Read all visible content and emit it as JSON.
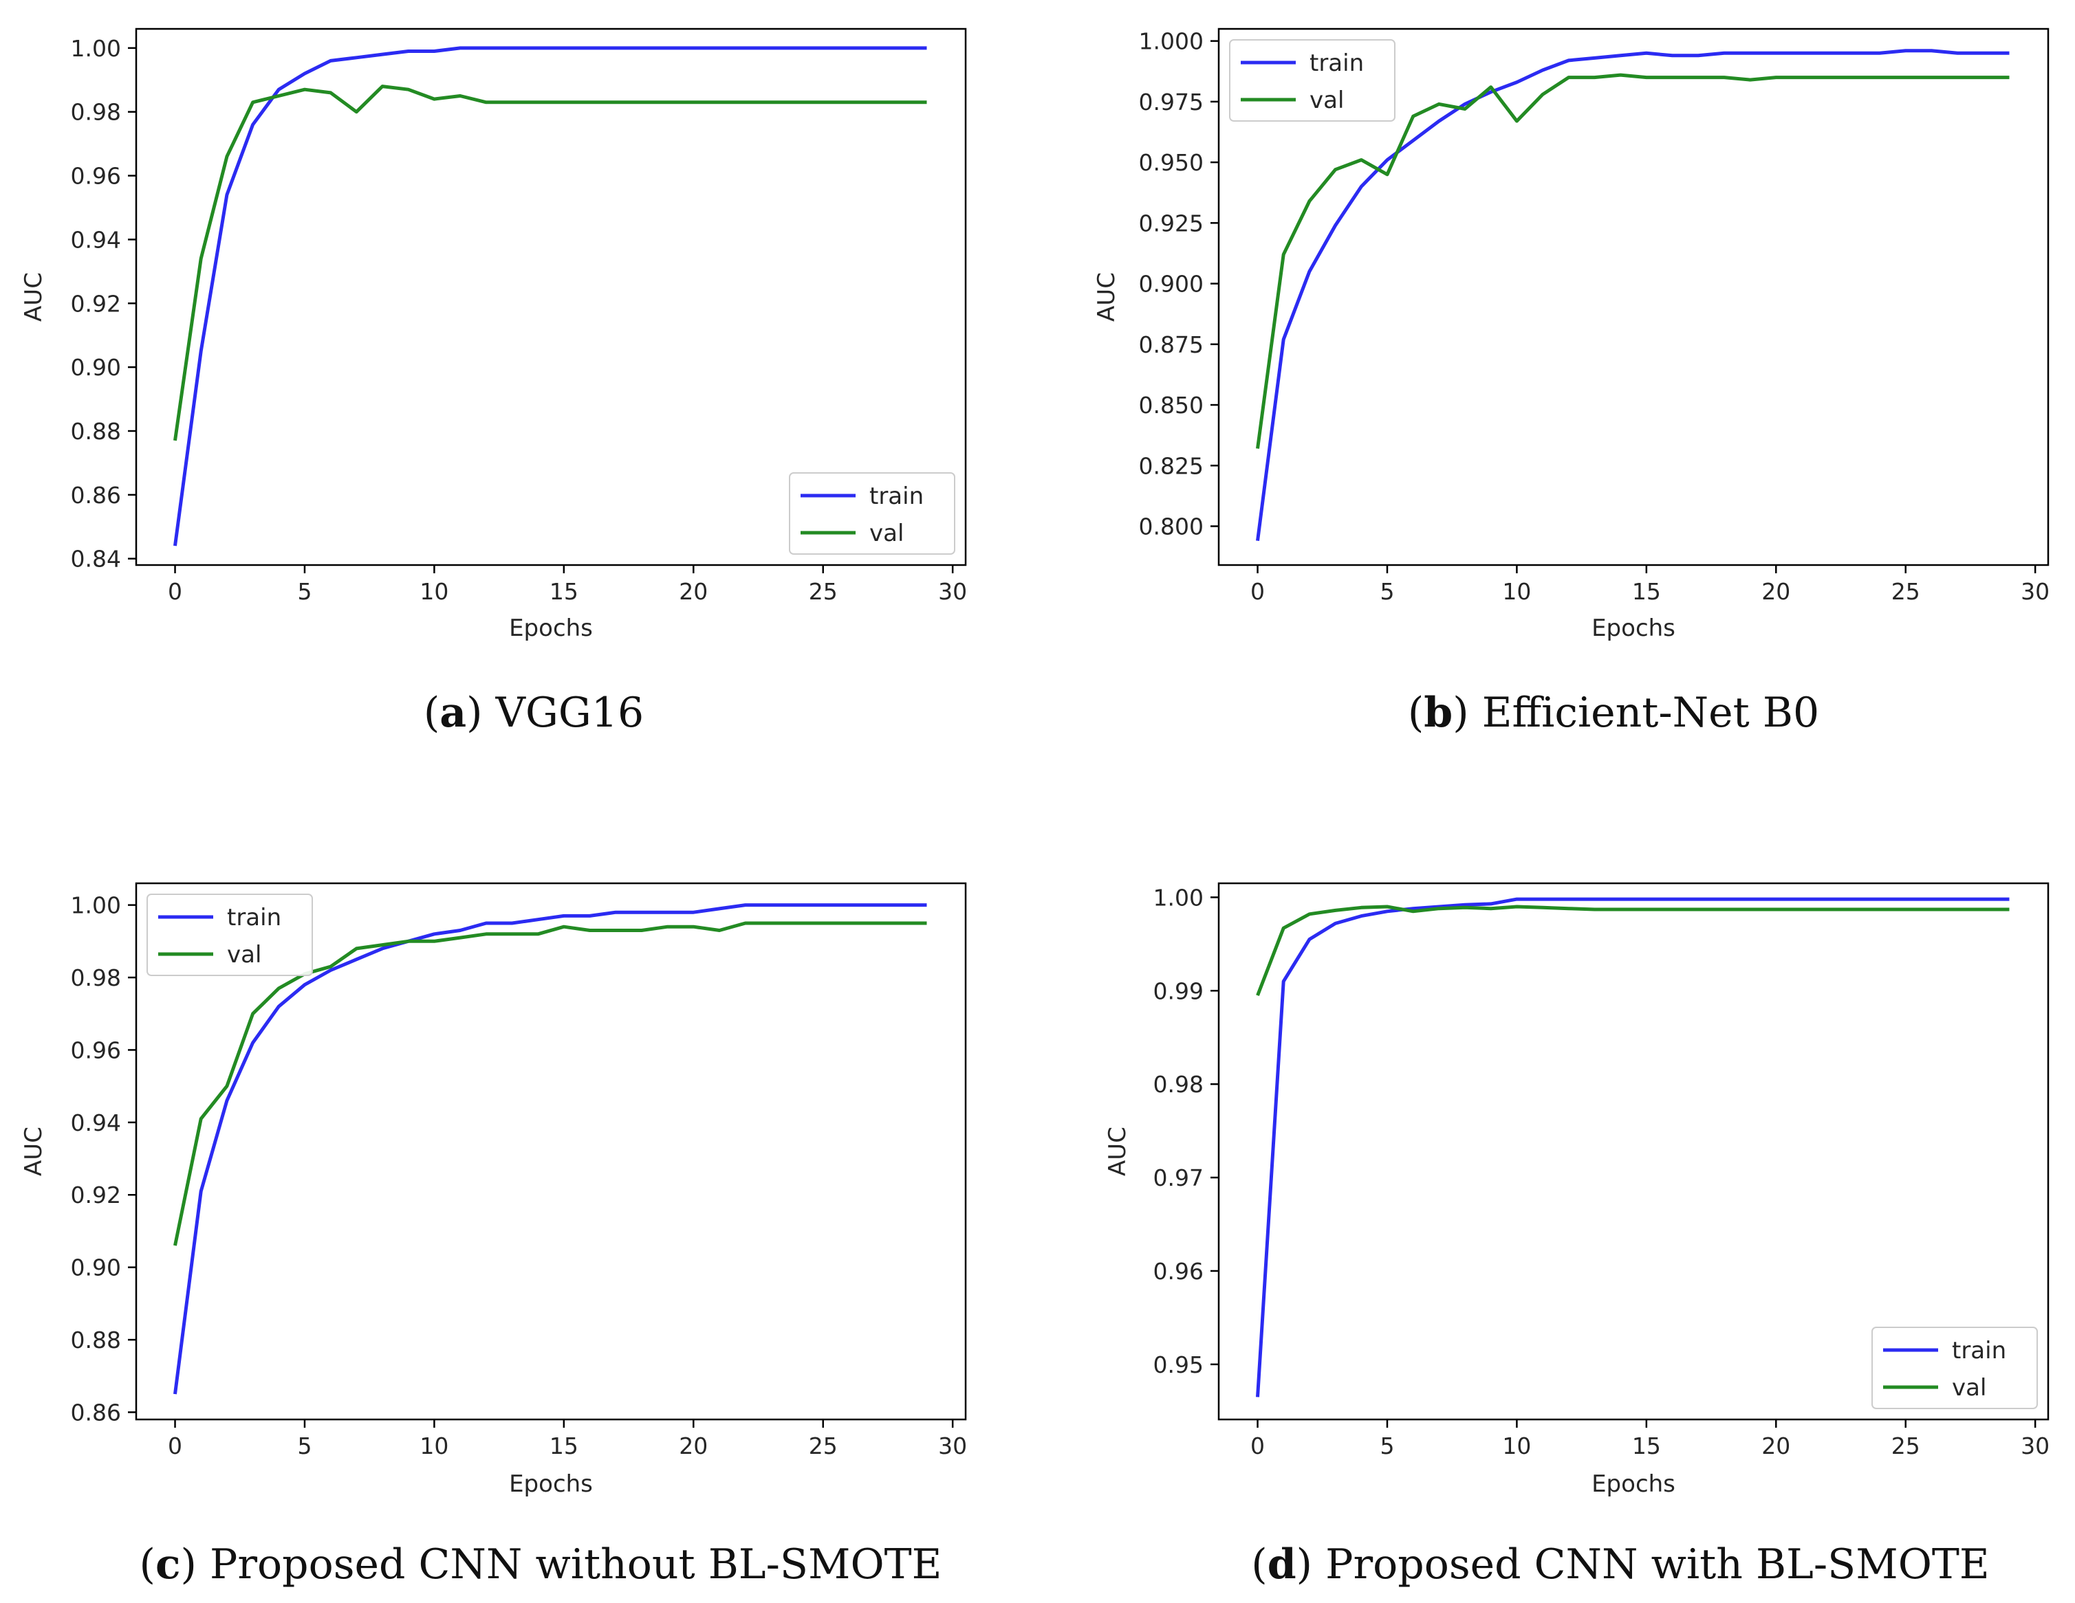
{
  "x_label": "Epochs",
  "y_label": "AUC",
  "series_colors": {
    "train": "#2b2bf2",
    "val": "#238b23"
  },
  "chart_data": [
    {
      "type": "line",
      "caption_letter": "a",
      "caption_text": "VGG16",
      "xlabel": "Epochs",
      "ylabel": "AUC",
      "xlim": [
        -1.5,
        30.5
      ],
      "ylim": [
        0.838,
        1.006
      ],
      "x_ticks": [
        0,
        5,
        10,
        15,
        20,
        25,
        30
      ],
      "y_ticks": [
        0.84,
        0.86,
        0.88,
        0.9,
        0.92,
        0.94,
        0.96,
        0.98,
        1.0
      ],
      "y_tick_labels": [
        "0.84",
        "0.86",
        "0.88",
        "0.90",
        "0.92",
        "0.94",
        "0.96",
        "0.98",
        "1.00"
      ],
      "legend_position": "bottom-right",
      "series": [
        {
          "name": "train",
          "values": [
            0.844,
            0.905,
            0.954,
            0.976,
            0.987,
            0.992,
            0.996,
            0.997,
            0.998,
            0.999,
            0.999,
            1.0,
            1.0,
            1.0,
            1.0,
            1.0,
            1.0,
            1.0,
            1.0,
            1.0,
            1.0,
            1.0,
            1.0,
            1.0,
            1.0,
            1.0,
            1.0,
            1.0,
            1.0,
            1.0
          ]
        },
        {
          "name": "val",
          "values": [
            0.877,
            0.934,
            0.966,
            0.983,
            0.985,
            0.987,
            0.986,
            0.98,
            0.988,
            0.987,
            0.984,
            0.985,
            0.983,
            0.983,
            0.983,
            0.983,
            0.983,
            0.983,
            0.983,
            0.983,
            0.983,
            0.983,
            0.983,
            0.983,
            0.983,
            0.983,
            0.983,
            0.983,
            0.983,
            0.983
          ]
        }
      ]
    },
    {
      "type": "line",
      "caption_letter": "b",
      "caption_text": "Efficient-Net B0",
      "xlabel": "Epochs",
      "ylabel": "AUC",
      "xlim": [
        -1.5,
        30.5
      ],
      "ylim": [
        0.784,
        1.005
      ],
      "x_ticks": [
        0,
        5,
        10,
        15,
        20,
        25,
        30
      ],
      "y_ticks": [
        0.8,
        0.825,
        0.85,
        0.875,
        0.9,
        0.925,
        0.95,
        0.975,
        1.0
      ],
      "y_tick_labels": [
        "0.800",
        "0.825",
        "0.850",
        "0.875",
        "0.900",
        "0.925",
        "0.950",
        "0.975",
        "1.000"
      ],
      "legend_position": "top-left",
      "series": [
        {
          "name": "train",
          "values": [
            0.794,
            0.877,
            0.905,
            0.924,
            0.94,
            0.951,
            0.959,
            0.967,
            0.974,
            0.979,
            0.983,
            0.988,
            0.992,
            0.993,
            0.994,
            0.995,
            0.994,
            0.994,
            0.995,
            0.995,
            0.995,
            0.995,
            0.995,
            0.995,
            0.995,
            0.996,
            0.996,
            0.995,
            0.995,
            0.995
          ]
        },
        {
          "name": "val",
          "values": [
            0.832,
            0.912,
            0.934,
            0.947,
            0.951,
            0.945,
            0.969,
            0.974,
            0.972,
            0.981,
            0.967,
            0.978,
            0.985,
            0.985,
            0.986,
            0.985,
            0.985,
            0.985,
            0.985,
            0.984,
            0.985,
            0.985,
            0.985,
            0.985,
            0.985,
            0.985,
            0.985,
            0.985,
            0.985,
            0.985
          ]
        }
      ]
    },
    {
      "type": "line",
      "caption_letter": "c",
      "caption_text": "Proposed CNN without BL-SMOTE",
      "xlabel": "Epochs",
      "ylabel": "AUC",
      "xlim": [
        -1.5,
        30.5
      ],
      "ylim": [
        0.858,
        1.006
      ],
      "x_ticks": [
        0,
        5,
        10,
        15,
        20,
        25,
        30
      ],
      "y_ticks": [
        0.86,
        0.88,
        0.9,
        0.92,
        0.94,
        0.96,
        0.98,
        1.0
      ],
      "y_tick_labels": [
        "0.86",
        "0.88",
        "0.90",
        "0.92",
        "0.94",
        "0.96",
        "0.98",
        "1.00"
      ],
      "legend_position": "top-left",
      "series": [
        {
          "name": "train",
          "values": [
            0.865,
            0.921,
            0.946,
            0.962,
            0.972,
            0.978,
            0.982,
            0.985,
            0.988,
            0.99,
            0.992,
            0.993,
            0.995,
            0.995,
            0.996,
            0.997,
            0.997,
            0.998,
            0.998,
            0.998,
            0.998,
            0.999,
            1.0,
            1.0,
            1.0,
            1.0,
            1.0,
            1.0,
            1.0,
            1.0
          ]
        },
        {
          "name": "val",
          "values": [
            0.906,
            0.941,
            0.95,
            0.97,
            0.977,
            0.981,
            0.983,
            0.988,
            0.989,
            0.99,
            0.99,
            0.991,
            0.992,
            0.992,
            0.992,
            0.994,
            0.993,
            0.993,
            0.993,
            0.994,
            0.994,
            0.993,
            0.995,
            0.995,
            0.995,
            0.995,
            0.995,
            0.995,
            0.995,
            0.995
          ]
        }
      ]
    },
    {
      "type": "line",
      "caption_letter": "d",
      "caption_text": "Proposed CNN with BL-SMOTE",
      "xlabel": "Epochs",
      "ylabel": "AUC",
      "xlim": [
        -1.5,
        30.5
      ],
      "ylim": [
        0.9441,
        1.0015
      ],
      "x_ticks": [
        0,
        5,
        10,
        15,
        20,
        25,
        30
      ],
      "y_ticks": [
        0.95,
        0.96,
        0.97,
        0.98,
        0.99,
        1.0
      ],
      "y_tick_labels": [
        "0.95",
        "0.96",
        "0.97",
        "0.98",
        "0.99",
        "1.00"
      ],
      "legend_position": "bottom-right",
      "series": [
        {
          "name": "train",
          "values": [
            0.9465,
            0.991,
            0.9955,
            0.9972,
            0.998,
            0.9985,
            0.9988,
            0.999,
            0.9992,
            0.9993,
            0.9998,
            0.9998,
            0.9998,
            0.9998,
            0.9998,
            0.9998,
            0.9998,
            0.9998,
            0.9998,
            0.9998,
            0.9998,
            0.9998,
            0.9998,
            0.9998,
            0.9998,
            0.9998,
            0.9998,
            0.9998,
            0.9998,
            0.9998
          ]
        },
        {
          "name": "val",
          "values": [
            0.9895,
            0.9967,
            0.9982,
            0.9986,
            0.9989,
            0.999,
            0.9985,
            0.9988,
            0.9989,
            0.9988,
            0.999,
            0.9989,
            0.9988,
            0.9987,
            0.9987,
            0.9987,
            0.9987,
            0.9987,
            0.9987,
            0.9987,
            0.9987,
            0.9987,
            0.9987,
            0.9987,
            0.9987,
            0.9987,
            0.9987,
            0.9987,
            0.9987,
            0.9987
          ]
        }
      ]
    }
  ]
}
